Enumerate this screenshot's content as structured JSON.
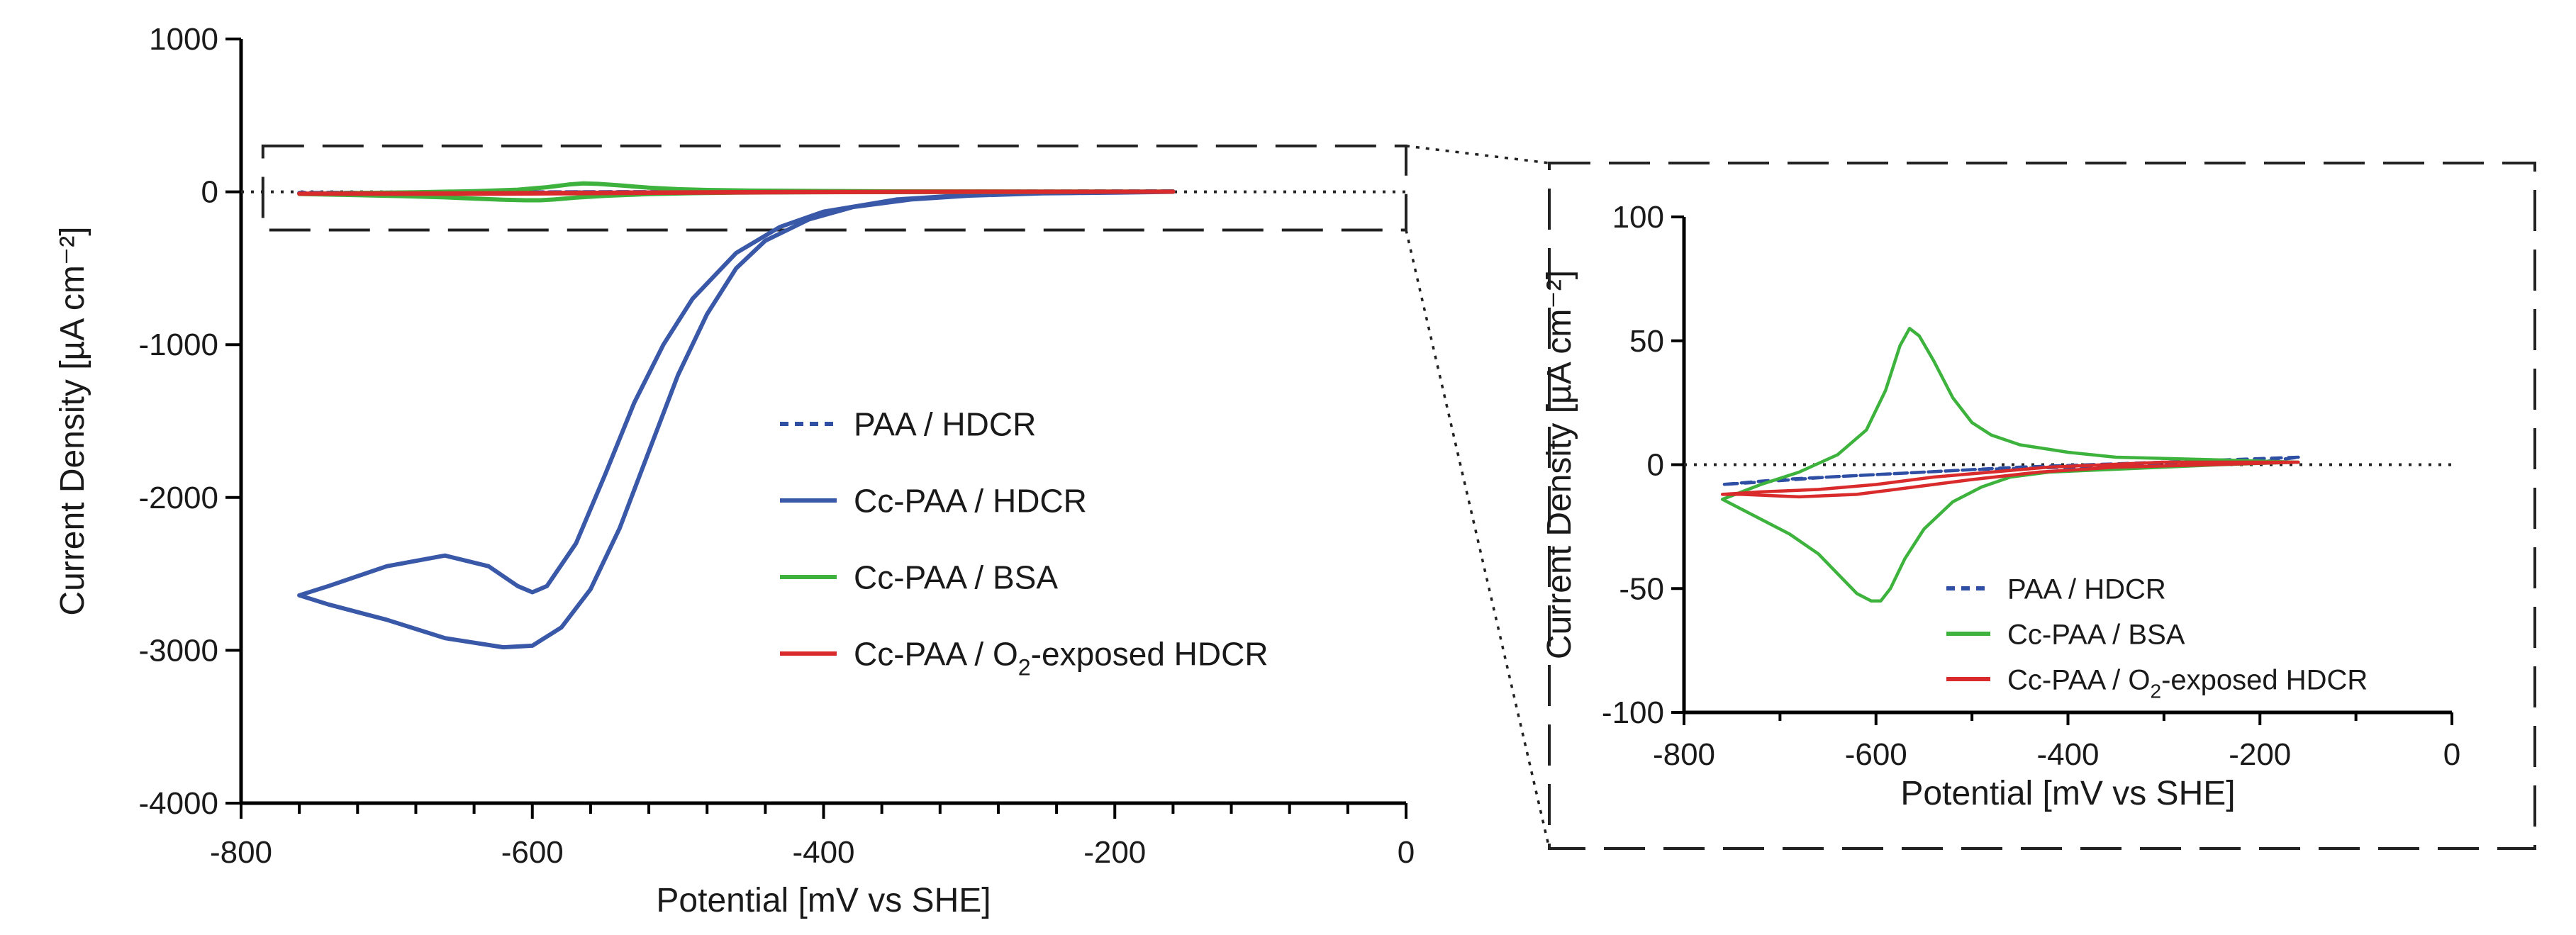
{
  "colors": {
    "paa_hdcr": "#2f4fa5",
    "cc_paa_hdcr": "#3a58a8",
    "cc_paa_bsa": "#3db33d",
    "cc_paa_o2": "#d92b2b"
  },
  "chart_data": [
    {
      "type": "line",
      "name": "main",
      "xlabel": "Potential [mV vs SHE]",
      "ylabel": "Current Density [µA cm⁻²]",
      "xlim": [
        -800,
        0
      ],
      "ylim": [
        -4000,
        1000
      ],
      "xticks": [
        -800,
        -600,
        -400,
        -200,
        0
      ],
      "xtick_labels": [
        "-800",
        "-600",
        "-400",
        "-200",
        "0"
      ],
      "yticks": [
        -4000,
        -3000,
        -2000,
        -1000,
        0,
        1000
      ],
      "ytick_labels": [
        "-4000",
        "-3000",
        "-2000",
        "-1000",
        "0",
        "1000"
      ],
      "zoom_box": {
        "x": [
          -785,
          0
        ],
        "y": [
          -250,
          300
        ]
      },
      "legend": [
        {
          "label": "PAA / HDCR",
          "style": "dashed",
          "color_key": "paa_hdcr"
        },
        {
          "label": "Cc-PAA / HDCR",
          "style": "solid",
          "color_key": "cc_paa_hdcr"
        },
        {
          "label": "Cc-PAA / BSA",
          "style": "solid",
          "color_key": "cc_paa_bsa"
        },
        {
          "label": "Cc-PAA / O",
          "sub": "2",
          "rest": "-exposed HDCR",
          "style": "solid",
          "color_key": "cc_paa_o2"
        }
      ],
      "series": [
        {
          "name": "Cc-PAA / HDCR",
          "color_key": "cc_paa_hdcr",
          "style": "solid",
          "x": [
            -160,
            -250,
            -300,
            -350,
            -400,
            -430,
            -460,
            -490,
            -510,
            -530,
            -550,
            -570,
            -590,
            -600,
            -610,
            -630,
            -660,
            -700,
            -740,
            -760,
            -740,
            -700,
            -660,
            -620,
            -600,
            -580,
            -560,
            -540,
            -520,
            -500,
            -480,
            -460,
            -440,
            -410,
            -380,
            -340,
            -300,
            -250,
            -200,
            -160
          ],
          "y": [
            0,
            -10,
            -20,
            -50,
            -130,
            -230,
            -400,
            -700,
            -1000,
            -1380,
            -1850,
            -2300,
            -2580,
            -2620,
            -2580,
            -2450,
            -2380,
            -2450,
            -2580,
            -2640,
            -2700,
            -2800,
            -2920,
            -2980,
            -2970,
            -2850,
            -2600,
            -2200,
            -1700,
            -1200,
            -800,
            -500,
            -320,
            -180,
            -100,
            -50,
            -25,
            -10,
            -5,
            0
          ]
        },
        {
          "name": "PAA / HDCR",
          "color_key": "paa_hdcr",
          "style": "dashed",
          "x": [
            -160,
            -300,
            -450,
            -550,
            -650,
            -720,
            -760,
            -700,
            -600,
            -500,
            -400,
            -300,
            -200,
            -160
          ],
          "y": [
            3,
            1,
            -1,
            -3,
            -5,
            -7,
            -8,
            -6,
            -4,
            -2,
            -1,
            0,
            1,
            3
          ]
        },
        {
          "name": "Cc-PAA / BSA",
          "color_key": "cc_paa_bsa",
          "style": "solid",
          "x": [
            -160,
            -250,
            -350,
            -400,
            -450,
            -480,
            -500,
            -520,
            -540,
            -555,
            -565,
            -575,
            -590,
            -610,
            -640,
            -680,
            -720,
            -760,
            -730,
            -690,
            -660,
            -640,
            -620,
            -605,
            -595,
            -585,
            -570,
            -550,
            -520,
            -490,
            -460,
            -420,
            -360,
            -300,
            -240,
            -160
          ],
          "y": [
            1,
            2,
            3,
            5,
            8,
            12,
            17,
            27,
            42,
            52,
            55,
            48,
            30,
            14,
            4,
            -3,
            -8,
            -14,
            -20,
            -28,
            -36,
            -44,
            -52,
            -55,
            -55,
            -50,
            -38,
            -26,
            -15,
            -9,
            -5,
            -3,
            -2,
            -1,
            0,
            1
          ]
        },
        {
          "name": "Cc-PAA / O2-exposed HDCR",
          "color_key": "cc_paa_o2",
          "style": "solid",
          "x": [
            -160,
            -250,
            -350,
            -430,
            -500,
            -560,
            -620,
            -680,
            -740,
            -760,
            -720,
            -660,
            -600,
            -540,
            -480,
            -420,
            -360,
            -300,
            -230,
            -160
          ],
          "y": [
            1,
            0,
            -1,
            -3,
            -6,
            -9,
            -12,
            -13,
            -12,
            -12,
            -11,
            -10,
            -8,
            -5,
            -3,
            -1,
            0,
            1,
            1,
            1
          ]
        }
      ]
    },
    {
      "type": "line",
      "name": "inset",
      "xlabel": "Potential [mV vs SHE]",
      "ylabel": "Current Density [µA cm⁻²]",
      "xlim": [
        -800,
        0
      ],
      "ylim": [
        -100,
        100
      ],
      "xticks": [
        -800,
        -600,
        -400,
        -200,
        0
      ],
      "xtick_labels": [
        "-800",
        "-600",
        "-400",
        "-200",
        "0"
      ],
      "yticks": [
        -100,
        -50,
        0,
        50,
        100
      ],
      "ytick_labels": [
        "-100",
        "-50",
        "0",
        "50",
        "100"
      ],
      "legend": [
        {
          "label": "PAA / HDCR",
          "style": "dashed",
          "color_key": "paa_hdcr"
        },
        {
          "label": "Cc-PAA / BSA",
          "style": "solid",
          "color_key": "cc_paa_bsa"
        },
        {
          "label": "Cc-PAA / O",
          "sub": "2",
          "rest": "-exposed HDCR",
          "style": "solid",
          "color_key": "cc_paa_o2"
        }
      ],
      "series_refs": [
        "PAA / HDCR",
        "Cc-PAA / BSA",
        "Cc-PAA / O2-exposed HDCR"
      ]
    }
  ]
}
